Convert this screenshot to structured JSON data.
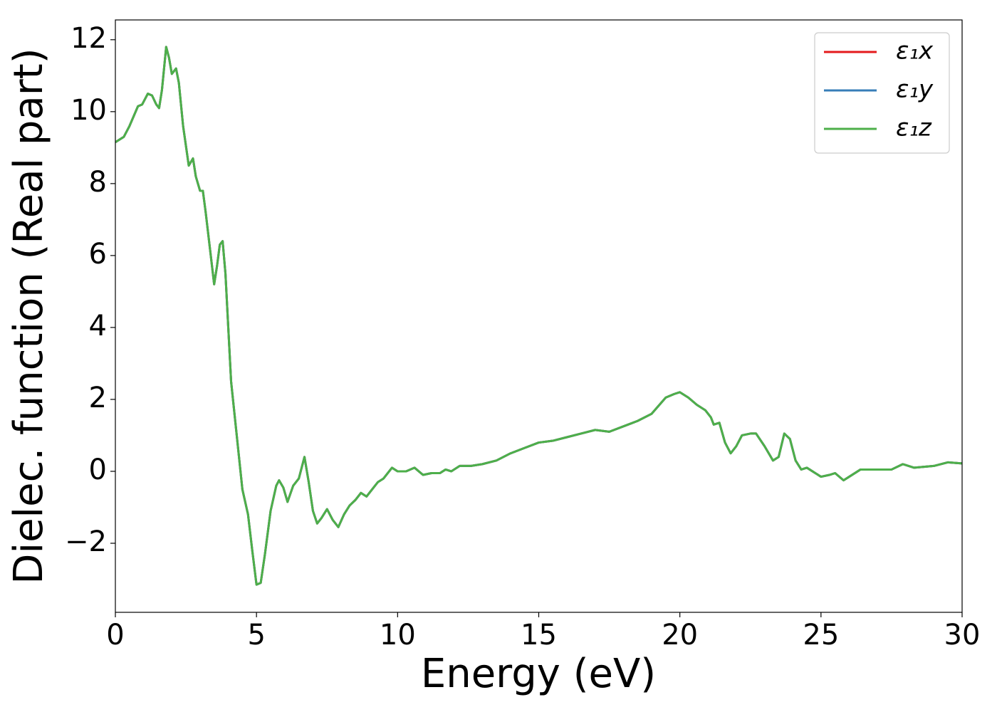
{
  "chart_data": {
    "type": "line",
    "xlabel": "Energy (eV)",
    "ylabel": "Dielec. function (Real part)",
    "x": [
      0,
      0.3,
      0.5,
      0.8,
      0.95,
      1.15,
      1.3,
      1.45,
      1.55,
      1.65,
      1.8,
      1.9,
      2.0,
      2.15,
      2.25,
      2.4,
      2.6,
      2.75,
      2.85,
      3.0,
      3.1,
      3.2,
      3.35,
      3.5,
      3.6,
      3.7,
      3.8,
      3.9,
      4.0,
      4.1,
      4.3,
      4.5,
      4.7,
      4.85,
      5.0,
      5.15,
      5.3,
      5.5,
      5.7,
      5.8,
      5.95,
      6.1,
      6.3,
      6.5,
      6.7,
      6.85,
      7.0,
      7.15,
      7.3,
      7.5,
      7.7,
      7.9,
      8.1,
      8.3,
      8.5,
      8.7,
      8.9,
      9.1,
      9.3,
      9.5,
      9.8,
      10.0,
      10.3,
      10.6,
      10.9,
      11.2,
      11.5,
      11.7,
      11.9,
      12.2,
      12.6,
      13.0,
      13.5,
      14.0,
      14.5,
      15.0,
      15.5,
      16.0,
      16.5,
      17.0,
      17.5,
      18.0,
      18.5,
      19.0,
      19.5,
      19.8,
      20.0,
      20.3,
      20.6,
      20.9,
      21.1,
      21.2,
      21.4,
      21.6,
      21.8,
      22.0,
      22.2,
      22.5,
      22.7,
      23.0,
      23.3,
      23.5,
      23.7,
      23.9,
      24.1,
      24.3,
      24.5,
      24.8,
      25.0,
      25.3,
      25.5,
      25.8,
      26.0,
      26.4,
      27.0,
      27.5,
      27.9,
      28.3,
      29.0,
      29.5,
      30.0
    ],
    "series": [
      {
        "name": "ε₁x",
        "color": "#e41a1c",
        "values": [
          9.15,
          9.3,
          9.6,
          10.15,
          10.2,
          10.5,
          10.45,
          10.2,
          10.1,
          10.6,
          11.8,
          11.5,
          11.05,
          11.2,
          10.8,
          9.6,
          8.5,
          8.7,
          8.2,
          7.8,
          7.8,
          7.2,
          6.2,
          5.2,
          5.7,
          6.3,
          6.4,
          5.5,
          4.0,
          2.5,
          1.0,
          -0.5,
          -1.2,
          -2.2,
          -3.15,
          -3.1,
          -2.3,
          -1.1,
          -0.4,
          -0.25,
          -0.45,
          -0.85,
          -0.4,
          -0.2,
          0.4,
          -0.3,
          -1.1,
          -1.45,
          -1.3,
          -1.05,
          -1.35,
          -1.55,
          -1.2,
          -0.95,
          -0.8,
          -0.6,
          -0.7,
          -0.5,
          -0.3,
          -0.2,
          0.1,
          0.0,
          0.0,
          0.1,
          -0.1,
          -0.05,
          -0.05,
          0.05,
          0.0,
          0.15,
          0.15,
          0.2,
          0.3,
          0.5,
          0.65,
          0.8,
          0.85,
          0.95,
          1.05,
          1.15,
          1.1,
          1.25,
          1.4,
          1.6,
          2.05,
          2.15,
          2.2,
          2.05,
          1.85,
          1.7,
          1.5,
          1.3,
          1.35,
          0.8,
          0.5,
          0.7,
          1.0,
          1.05,
          1.05,
          0.7,
          0.3,
          0.4,
          1.05,
          0.9,
          0.3,
          0.05,
          0.1,
          -0.05,
          -0.15,
          -0.1,
          -0.05,
          -0.25,
          -0.15,
          0.05,
          0.05,
          0.05,
          0.2,
          0.1,
          0.15,
          0.25,
          0.22
        ]
      },
      {
        "name": "ε₁y",
        "color": "#377eb8",
        "values": [
          9.15,
          9.3,
          9.6,
          10.15,
          10.2,
          10.5,
          10.45,
          10.2,
          10.1,
          10.6,
          11.8,
          11.5,
          11.05,
          11.2,
          10.8,
          9.6,
          8.5,
          8.7,
          8.2,
          7.8,
          7.8,
          7.2,
          6.2,
          5.2,
          5.7,
          6.3,
          6.4,
          5.5,
          4.0,
          2.5,
          1.0,
          -0.5,
          -1.2,
          -2.2,
          -3.15,
          -3.1,
          -2.3,
          -1.1,
          -0.4,
          -0.25,
          -0.45,
          -0.85,
          -0.4,
          -0.2,
          0.4,
          -0.3,
          -1.1,
          -1.45,
          -1.3,
          -1.05,
          -1.35,
          -1.55,
          -1.2,
          -0.95,
          -0.8,
          -0.6,
          -0.7,
          -0.5,
          -0.3,
          -0.2,
          0.1,
          0.0,
          0.0,
          0.1,
          -0.1,
          -0.05,
          -0.05,
          0.05,
          0.0,
          0.15,
          0.15,
          0.2,
          0.3,
          0.5,
          0.65,
          0.8,
          0.85,
          0.95,
          1.05,
          1.15,
          1.1,
          1.25,
          1.4,
          1.6,
          2.05,
          2.15,
          2.2,
          2.05,
          1.85,
          1.7,
          1.5,
          1.3,
          1.35,
          0.8,
          0.5,
          0.7,
          1.0,
          1.05,
          1.05,
          0.7,
          0.3,
          0.4,
          1.05,
          0.9,
          0.3,
          0.05,
          0.1,
          -0.05,
          -0.15,
          -0.1,
          -0.05,
          -0.25,
          -0.15,
          0.05,
          0.05,
          0.05,
          0.2,
          0.1,
          0.15,
          0.25,
          0.22
        ]
      },
      {
        "name": "ε₁z",
        "color": "#4daf4a",
        "values": [
          9.15,
          9.3,
          9.6,
          10.15,
          10.2,
          10.5,
          10.45,
          10.2,
          10.1,
          10.6,
          11.8,
          11.5,
          11.05,
          11.2,
          10.8,
          9.6,
          8.5,
          8.7,
          8.2,
          7.8,
          7.8,
          7.2,
          6.2,
          5.2,
          5.7,
          6.3,
          6.4,
          5.5,
          4.0,
          2.5,
          1.0,
          -0.5,
          -1.2,
          -2.2,
          -3.15,
          -3.1,
          -2.3,
          -1.1,
          -0.4,
          -0.25,
          -0.45,
          -0.85,
          -0.4,
          -0.2,
          0.4,
          -0.3,
          -1.1,
          -1.45,
          -1.3,
          -1.05,
          -1.35,
          -1.55,
          -1.2,
          -0.95,
          -0.8,
          -0.6,
          -0.7,
          -0.5,
          -0.3,
          -0.2,
          0.1,
          0.0,
          0.0,
          0.1,
          -0.1,
          -0.05,
          -0.05,
          0.05,
          0.0,
          0.15,
          0.15,
          0.2,
          0.3,
          0.5,
          0.65,
          0.8,
          0.85,
          0.95,
          1.05,
          1.15,
          1.1,
          1.25,
          1.4,
          1.6,
          2.05,
          2.15,
          2.2,
          2.05,
          1.85,
          1.7,
          1.5,
          1.3,
          1.35,
          0.8,
          0.5,
          0.7,
          1.0,
          1.05,
          1.05,
          0.7,
          0.3,
          0.4,
          1.05,
          0.9,
          0.3,
          0.05,
          0.1,
          -0.05,
          -0.15,
          -0.1,
          -0.05,
          -0.25,
          -0.15,
          0.05,
          0.05,
          0.05,
          0.2,
          0.1,
          0.15,
          0.25,
          0.22
        ]
      }
    ],
    "xlim": [
      0,
      30
    ],
    "xticks": [
      0,
      5,
      10,
      15,
      20,
      25,
      30
    ],
    "ylim": [
      -3.92,
      12.55
    ],
    "yticks": [
      {
        "value": -2,
        "label": "−2"
      },
      0,
      2,
      4,
      6,
      8,
      10,
      12
    ],
    "grid": false,
    "legend": "upper right"
  }
}
